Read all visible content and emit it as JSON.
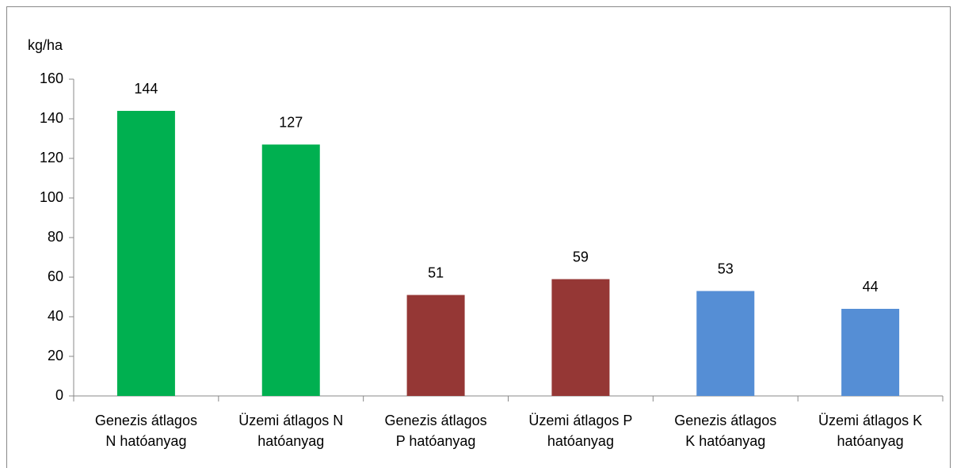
{
  "chart_data": {
    "type": "bar",
    "y_axis_label": "kg/ha",
    "categories": [
      [
        "Genezis átlagos",
        "N hatóanyag"
      ],
      [
        "Üzemi átlagos N",
        "hatóanyag"
      ],
      [
        "Genezis átlagos",
        "P hatóanyag"
      ],
      [
        "Üzemi átlagos P",
        "hatóanyag"
      ],
      [
        "Genezis átlagos",
        "K hatóanyag"
      ],
      [
        "Üzemi átlagos K",
        "hatóanyag"
      ]
    ],
    "values": [
      144,
      127,
      51,
      59,
      53,
      44
    ],
    "colors": [
      "#00b050",
      "#00b050",
      "#953735",
      "#953735",
      "#558ed5",
      "#558ed5"
    ],
    "ylim": [
      0,
      160
    ],
    "yticks": [
      0,
      20,
      40,
      60,
      80,
      100,
      120,
      140,
      160
    ],
    "grid": false
  }
}
